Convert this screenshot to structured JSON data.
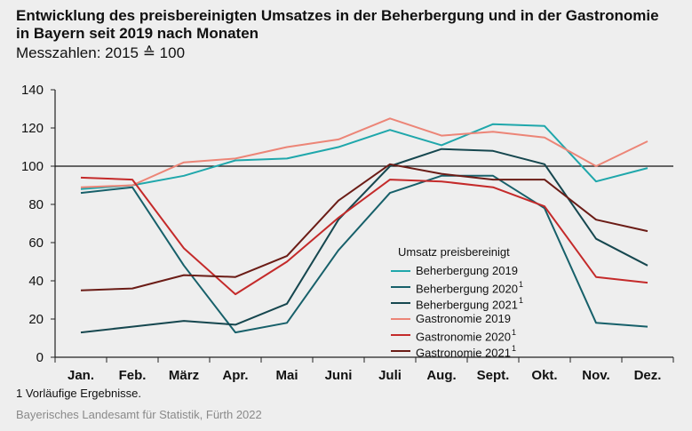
{
  "title": "Entwicklung des preisbereinigten Umsatzes in der Beherbergung und in der Gastronomie in Bayern seit 2019 nach Monaten",
  "subtitle": "Messzahlen: 2015 ≙ 100",
  "footnote": "1  Vorläufige Ergebnisse.",
  "source": "Bayerisches Landesamt für Statistik, Fürth 2022",
  "legend_title": "Umsatz preisbereinigt",
  "chart_data": {
    "type": "line",
    "categories": [
      "Jan.",
      "Feb.",
      "März",
      "Apr.",
      "Mai",
      "Juni",
      "Juli",
      "Aug.",
      "Sept.",
      "Okt.",
      "Nov.",
      "Dez."
    ],
    "ylim": [
      0,
      140
    ],
    "yticks": [
      0,
      20,
      40,
      60,
      80,
      100,
      120,
      140
    ],
    "reference_line": 100,
    "grid": false,
    "legend_position": "bottom-right",
    "series": [
      {
        "name": "Beherbergung 2019",
        "footnote_mark": "",
        "color": "#1fa7ab",
        "values": [
          88,
          90,
          95,
          103,
          104,
          110,
          119,
          111,
          122,
          121,
          92,
          99
        ]
      },
      {
        "name": "Beherbergung 2020",
        "footnote_mark": "1",
        "color": "#17606a",
        "values": [
          86,
          89,
          48,
          13,
          18,
          56,
          86,
          95,
          95,
          78,
          18,
          16
        ]
      },
      {
        "name": "Beherbergung 2021",
        "footnote_mark": "1",
        "color": "#16474f",
        "values": [
          13,
          16,
          19,
          17,
          28,
          72,
          100,
          109,
          108,
          101,
          62,
          48
        ]
      },
      {
        "name": "Gastronomie 2019",
        "footnote_mark": "",
        "color": "#ec8577",
        "values": [
          89,
          90,
          102,
          104,
          110,
          114,
          125,
          116,
          118,
          115,
          100,
          113
        ]
      },
      {
        "name": "Gastronomie 2020",
        "footnote_mark": "1",
        "color": "#c42a2a",
        "values": [
          94,
          93,
          57,
          33,
          50,
          73,
          93,
          92,
          89,
          79,
          42,
          39
        ]
      },
      {
        "name": "Gastronomie 2021",
        "footnote_mark": "1",
        "color": "#6b1c16",
        "values": [
          35,
          36,
          43,
          42,
          53,
          82,
          101,
          96,
          93,
          93,
          72,
          66
        ]
      }
    ]
  }
}
